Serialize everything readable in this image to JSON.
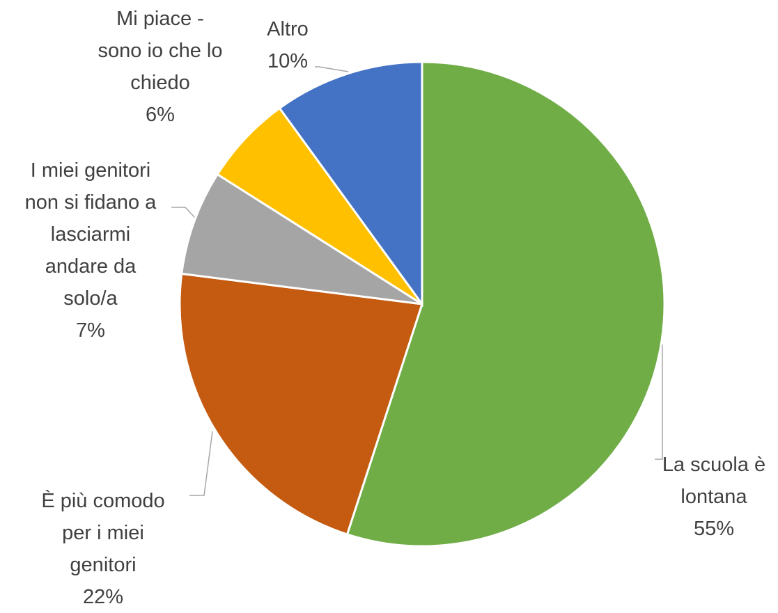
{
  "chart_data": {
    "type": "pie",
    "categories": [
      "La scuola è\nlontana",
      "È più comodo\nper i miei\ngenitori",
      "I miei genitori\nnon si fidano a\nlasciarmi\nandare da\nsolo/a",
      "Mi piace -\nsono io che lo\nchiedo",
      "Altro"
    ],
    "values": [
      55,
      22,
      7,
      6,
      10
    ],
    "value_labels": [
      "55%",
      "22%",
      "7%",
      "6%",
      "10%"
    ],
    "colors": [
      "#70ad47",
      "#c55a11",
      "#a5a5a5",
      "#ffc000",
      "#4472c4"
    ]
  }
}
